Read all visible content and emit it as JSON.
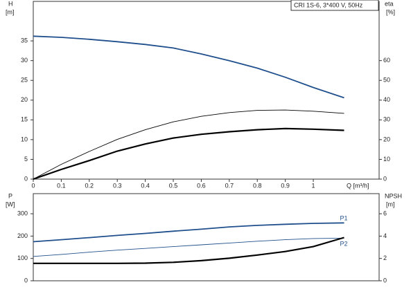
{
  "chart_data": [
    {
      "type": "line",
      "annotation": "CRI 1S-6, 3*400 V, 50Hz",
      "ylabel": "H",
      "ylabel_unit": "[m]",
      "y2label": "eta",
      "y2label_unit": "[%]",
      "xlabel": "Q [m³/h]",
      "x": [
        0,
        0.1,
        0.2,
        0.3,
        0.4,
        0.5,
        0.6,
        0.7,
        0.8,
        0.9,
        1.0,
        1.11
      ],
      "xlim": [
        0,
        1.235
      ],
      "xticks": [
        0,
        0.1,
        0.2,
        0.3,
        0.4,
        0.5,
        0.6,
        0.7,
        0.8,
        0.9,
        1.0
      ],
      "ylim": [
        0,
        45
      ],
      "yticks": [
        0,
        5,
        10,
        15,
        20,
        25,
        30,
        35
      ],
      "y2lim": [
        0,
        90
      ],
      "y2ticks": [
        0,
        10,
        20,
        30,
        40,
        50,
        60
      ],
      "series": [
        {
          "color": "#1f4e8c",
          "values": [
            36.2,
            35.9,
            35.4,
            34.8,
            34.1,
            33.2,
            31.7,
            30.0,
            28.1,
            25.8,
            23.2,
            20.6
          ]
        },
        {
          "color": "#000000",
          "axis": "y2",
          "values": [
            0,
            7.5,
            14,
            20.1,
            25,
            29,
            31.8,
            33.7,
            34.8,
            35,
            34.4,
            33.3
          ]
        },
        {
          "color": "#000000",
          "axis": "y2",
          "values": [
            0,
            4.9,
            9.4,
            14.2,
            17.8,
            20.8,
            22.7,
            24,
            25,
            25.6,
            25.3,
            24.7
          ]
        }
      ]
    },
    {
      "type": "line",
      "ylabel": "P",
      "ylabel_unit": "[W]",
      "y2label": "NPSH",
      "y2label_unit": "[m]",
      "x": [
        0,
        0.1,
        0.2,
        0.3,
        0.4,
        0.5,
        0.6,
        0.7,
        0.8,
        0.9,
        1.0,
        1.11
      ],
      "xlim": [
        0,
        1.235
      ],
      "ylim": [
        0,
        390
      ],
      "yticks": [
        0,
        100,
        200,
        300
      ],
      "y2lim": [
        0,
        7.8
      ],
      "y2ticks": [
        0,
        2,
        4,
        6
      ],
      "series": [
        {
          "name": "P1",
          "color": "#1f4e8c",
          "values": [
            175,
            184,
            193,
            203,
            212,
            222,
            231,
            241,
            248,
            253,
            257,
            259
          ]
        },
        {
          "name": "P2",
          "color": "#1f4e8c",
          "values": [
            109,
            118,
            128,
            137,
            145,
            153,
            161,
            169,
            177,
            184,
            189,
            191
          ]
        },
        {
          "color": "#000000",
          "axis": "y2",
          "values": [
            1.56,
            1.56,
            1.56,
            1.56,
            1.58,
            1.65,
            1.8,
            2.02,
            2.3,
            2.62,
            3.06,
            3.87
          ]
        }
      ]
    }
  ]
}
